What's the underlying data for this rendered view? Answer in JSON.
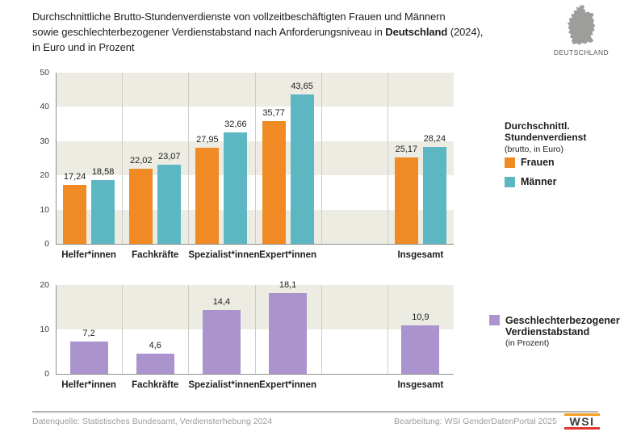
{
  "title": {
    "line1": "Durchschnittliche Brutto-Stundenverdienste von vollzeitbeschäftigten Frauen und Männern",
    "line2_prefix": "sowie geschlechterbezogener Verdienstabstand nach Anforderungsniveau in ",
    "line2_bold": "Deutschland",
    "line2_suffix": " (2024),",
    "line3": "in Euro und in Prozent"
  },
  "map": {
    "caption": "DEUTSCHLAND"
  },
  "colors": {
    "orange": "#EF8A25",
    "teal": "#5CB7C3",
    "purple": "#AB94CE",
    "band": "#EDECE3",
    "grid": "#CDCCC7",
    "axis": "#8F8F8C",
    "muted": "#9C9C9B",
    "map_gray": "#9D9D9C",
    "logo_orange": "#F59C1C",
    "logo_red": "#E5352E"
  },
  "chart_data": [
    {
      "type": "bar",
      "title": "Durchschnittl. Stundenverdienst (brutto, in Euro)",
      "categories": [
        "Helfer*innen",
        "Fachkräfte",
        "Spezialist*innen",
        "Expert*innen",
        "Insgesamt"
      ],
      "slots": [
        0,
        1,
        2,
        3,
        5
      ],
      "num_slots": 6,
      "series": [
        {
          "name": "Frauen",
          "color_key": "orange",
          "values": [
            17.24,
            22.02,
            27.95,
            35.77,
            25.17
          ],
          "labels": [
            "17,24",
            "22,02",
            "27,95",
            "35,77",
            "25,17"
          ]
        },
        {
          "name": "Männer",
          "color_key": "teal",
          "values": [
            18.58,
            23.07,
            32.66,
            43.65,
            28.24
          ],
          "labels": [
            "18,58",
            "23,07",
            "32,66",
            "43,65",
            "28,24"
          ]
        }
      ],
      "ylim": [
        0,
        50
      ],
      "ytick_step": 10,
      "yticks": [
        "0",
        "10",
        "20",
        "30",
        "40",
        "50"
      ],
      "grid": "alternating horizontal bands, vertical category separators",
      "legend_position": "right"
    },
    {
      "type": "bar",
      "title": "Geschlechterbezogener Verdienstabstand (in Prozent)",
      "categories": [
        "Helfer*innen",
        "Fachkräfte",
        "Spezialist*innen",
        "Expert*innen",
        "Insgesamt"
      ],
      "slots": [
        0,
        1,
        2,
        3,
        5
      ],
      "num_slots": 6,
      "series": [
        {
          "name": "Geschlechterbezogener Verdienstabstand",
          "color_key": "purple",
          "values": [
            7.2,
            4.6,
            14.4,
            18.1,
            10.9
          ],
          "labels": [
            "7,2",
            "4,6",
            "14,4",
            "18,1",
            "10,9"
          ]
        }
      ],
      "ylim": [
        0,
        20
      ],
      "ytick_step": 10,
      "yticks": [
        "0",
        "10",
        "20"
      ],
      "grid": "alternating horizontal bands, vertical category separators",
      "legend_position": "right"
    }
  ],
  "legend_top": {
    "title_line1": "Durchschnittl.",
    "title_line2": "Stundenverdienst",
    "subtitle": "(brutto, in Euro)",
    "items": [
      {
        "label": "Frauen",
        "color_key": "orange"
      },
      {
        "label": "Männer",
        "color_key": "teal"
      }
    ]
  },
  "legend_bottom": {
    "line1": "Geschlechterbezogener",
    "line2": "Verdienstabstand",
    "subtitle": "(in Prozent)",
    "color_key": "purple"
  },
  "footer": {
    "source": "Datenquelle: Statistisches Bundesamt, Verdiensterhebung 2024",
    "editing": "Bearbeitung: WSI GenderDatenPortal 2025",
    "logo": "WSI"
  }
}
